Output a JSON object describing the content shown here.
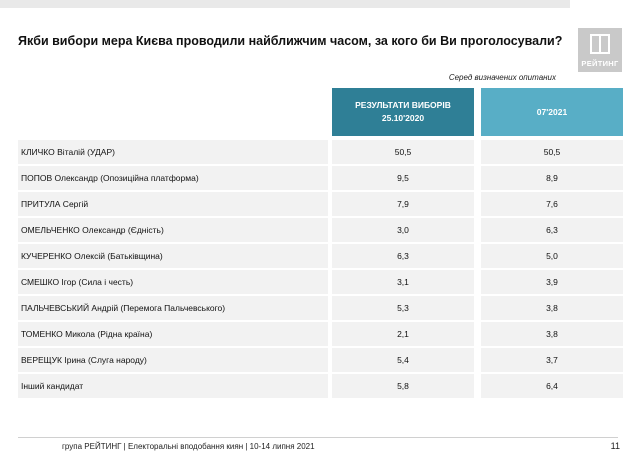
{
  "title": "Якби вибори мера Києва проводили найближчим часом, за кого би Ви проголосували?",
  "logo_text": "РЕЙТИНГ",
  "note": "Серед визначених опитаних",
  "chart_data": {
    "type": "table",
    "columns": [
      {
        "line1": "РЕЗУЛЬТАТИ ВИБОРІВ",
        "line2": "25.10'2020"
      },
      {
        "line1": "07'2021",
        "line2": ""
      }
    ],
    "column_colors": [
      "#2f7f96",
      "#58aec6"
    ],
    "rows": [
      {
        "label": "КЛИЧКО Віталій (УДАР)",
        "v1": "50,5",
        "v2": "50,5"
      },
      {
        "label": "ПОПОВ Олександр (Опозиційна платформа)",
        "v1": "9,5",
        "v2": "8,9"
      },
      {
        "label": "ПРИТУЛА Сергій",
        "v1": "7,9",
        "v2": "7,6"
      },
      {
        "label": "ОМЕЛЬЧЕНКО Олександр (Єдність)",
        "v1": "3,0",
        "v2": "6,3"
      },
      {
        "label": "КУЧЕРЕНКО Олексій (Батьківщина)",
        "v1": "6,3",
        "v2": "5,0"
      },
      {
        "label": "СМЕШКО Ігор (Сила і честь)",
        "v1": "3,1",
        "v2": "3,9"
      },
      {
        "label": "ПАЛЬЧЕВСЬКИЙ Андрій (Перемога Пальчевського)",
        "v1": "5,3",
        "v2": "3,8"
      },
      {
        "label": "ТОМЕНКО Микола (Рідна країна)",
        "v1": "2,1",
        "v2": "3,8"
      },
      {
        "label": "ВЕРЕЩУК Ірина (Слуга народу)",
        "v1": "5,4",
        "v2": "3,7"
      },
      {
        "label": "Інший кандидат",
        "v1": "5,8",
        "v2": "6,4"
      }
    ]
  },
  "footer": "група РЕЙТИНГ | Електоральні вподобання киян | 10-14 липня 2021",
  "page_number": "11"
}
